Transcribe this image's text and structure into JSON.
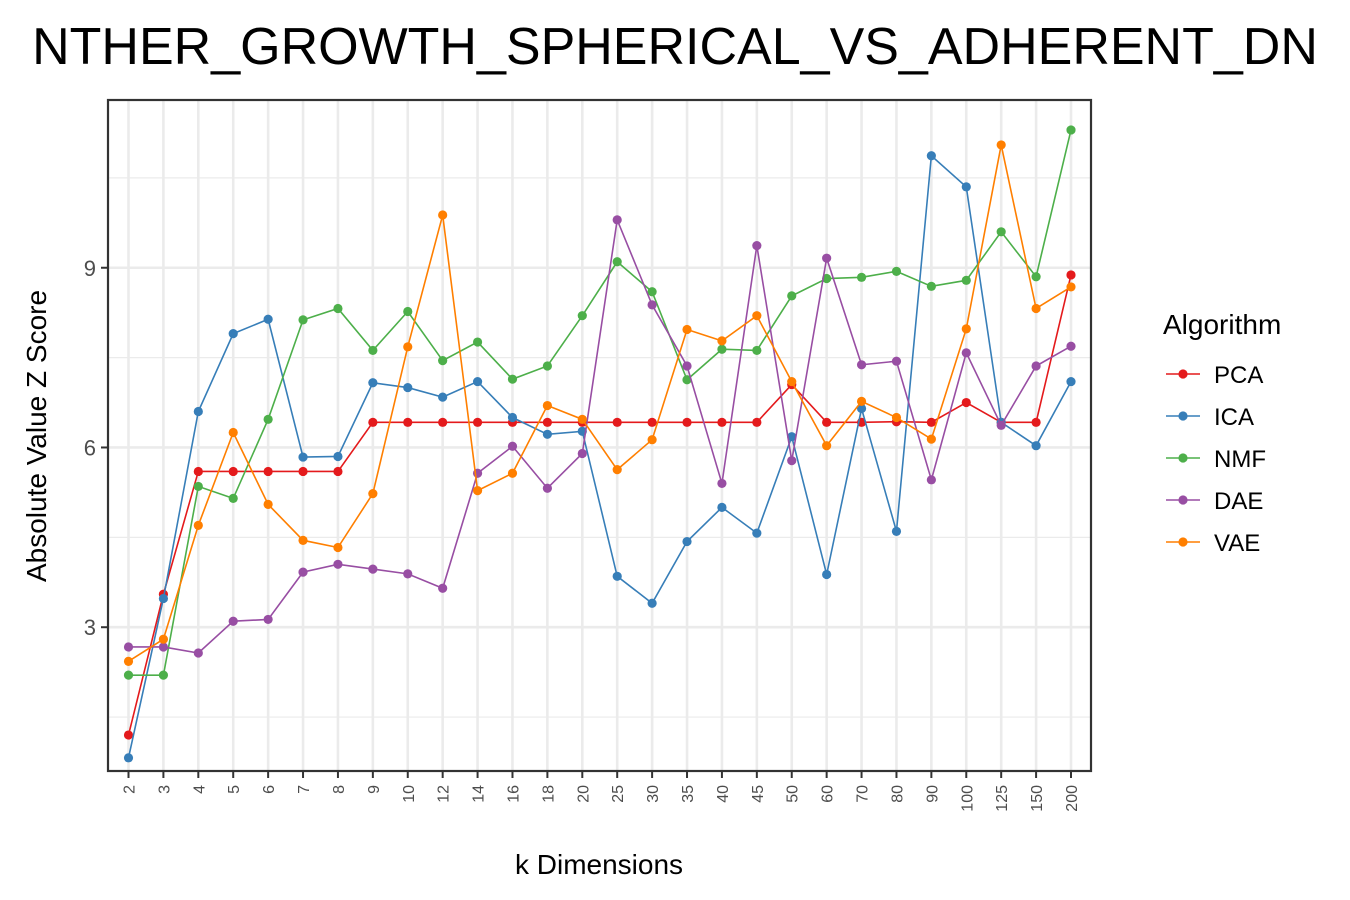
{
  "chart_data": {
    "type": "line",
    "title": "NTHER_GROWTH_SPHERICAL_VS_ADHERENT_DN",
    "xlabel": "k Dimensions",
    "ylabel": "Absolute Value Z Score",
    "categories": [
      "2",
      "3",
      "4",
      "5",
      "6",
      "7",
      "8",
      "9",
      "10",
      "12",
      "14",
      "16",
      "18",
      "20",
      "25",
      "30",
      "35",
      "40",
      "45",
      "50",
      "60",
      "70",
      "80",
      "90",
      "100",
      "125",
      "150",
      "200"
    ],
    "yticks": [
      3,
      6,
      9
    ],
    "ylim": [
      0.6,
      11.8
    ],
    "grid": true,
    "legend": {
      "title": "Algorithm",
      "position": "right"
    },
    "series": [
      {
        "name": "PCA",
        "color": "#e41a1c",
        "values": [
          1.2,
          3.55,
          5.6,
          5.6,
          5.6,
          5.6,
          5.6,
          6.42,
          6.42,
          6.42,
          6.42,
          6.42,
          6.42,
          6.42,
          6.42,
          6.42,
          6.42,
          6.42,
          6.42,
          7.05,
          6.42,
          6.42,
          6.43,
          6.42,
          6.75,
          6.42,
          6.42,
          8.88
        ]
      },
      {
        "name": "ICA",
        "color": "#377eb8",
        "values": [
          0.82,
          3.48,
          6.6,
          7.9,
          8.14,
          5.84,
          5.85,
          7.08,
          7.0,
          6.84,
          7.1,
          6.5,
          6.22,
          6.27,
          3.85,
          3.4,
          4.43,
          5.0,
          4.57,
          6.18,
          3.88,
          6.65,
          4.6,
          10.87,
          10.35,
          6.42,
          6.03,
          7.1
        ]
      },
      {
        "name": "NMF",
        "color": "#4daf4a",
        "values": [
          2.2,
          2.2,
          5.35,
          5.15,
          6.47,
          8.13,
          8.32,
          7.62,
          8.27,
          7.45,
          7.76,
          7.14,
          7.36,
          8.2,
          9.1,
          8.6,
          7.13,
          7.64,
          7.62,
          8.53,
          8.82,
          8.84,
          8.94,
          8.69,
          8.79,
          9.6,
          8.85,
          11.3
        ]
      },
      {
        "name": "DAE",
        "color": "#984ea3",
        "values": [
          2.67,
          2.67,
          2.57,
          3.1,
          3.13,
          3.92,
          4.05,
          3.97,
          3.89,
          3.65,
          5.57,
          6.02,
          5.32,
          5.9,
          9.8,
          8.38,
          7.36,
          5.4,
          9.37,
          5.78,
          9.16,
          7.38,
          7.44,
          5.46,
          7.58,
          6.37,
          7.36,
          7.69
        ]
      },
      {
        "name": "VAE",
        "color": "#ff7f00",
        "values": [
          2.43,
          2.8,
          4.7,
          6.25,
          5.05,
          4.45,
          4.33,
          5.23,
          7.68,
          9.88,
          5.28,
          5.57,
          6.7,
          6.47,
          5.63,
          6.13,
          7.97,
          7.78,
          8.2,
          7.1,
          6.03,
          6.77,
          6.5,
          6.14,
          7.98,
          11.05,
          8.32,
          8.68
        ]
      }
    ]
  }
}
